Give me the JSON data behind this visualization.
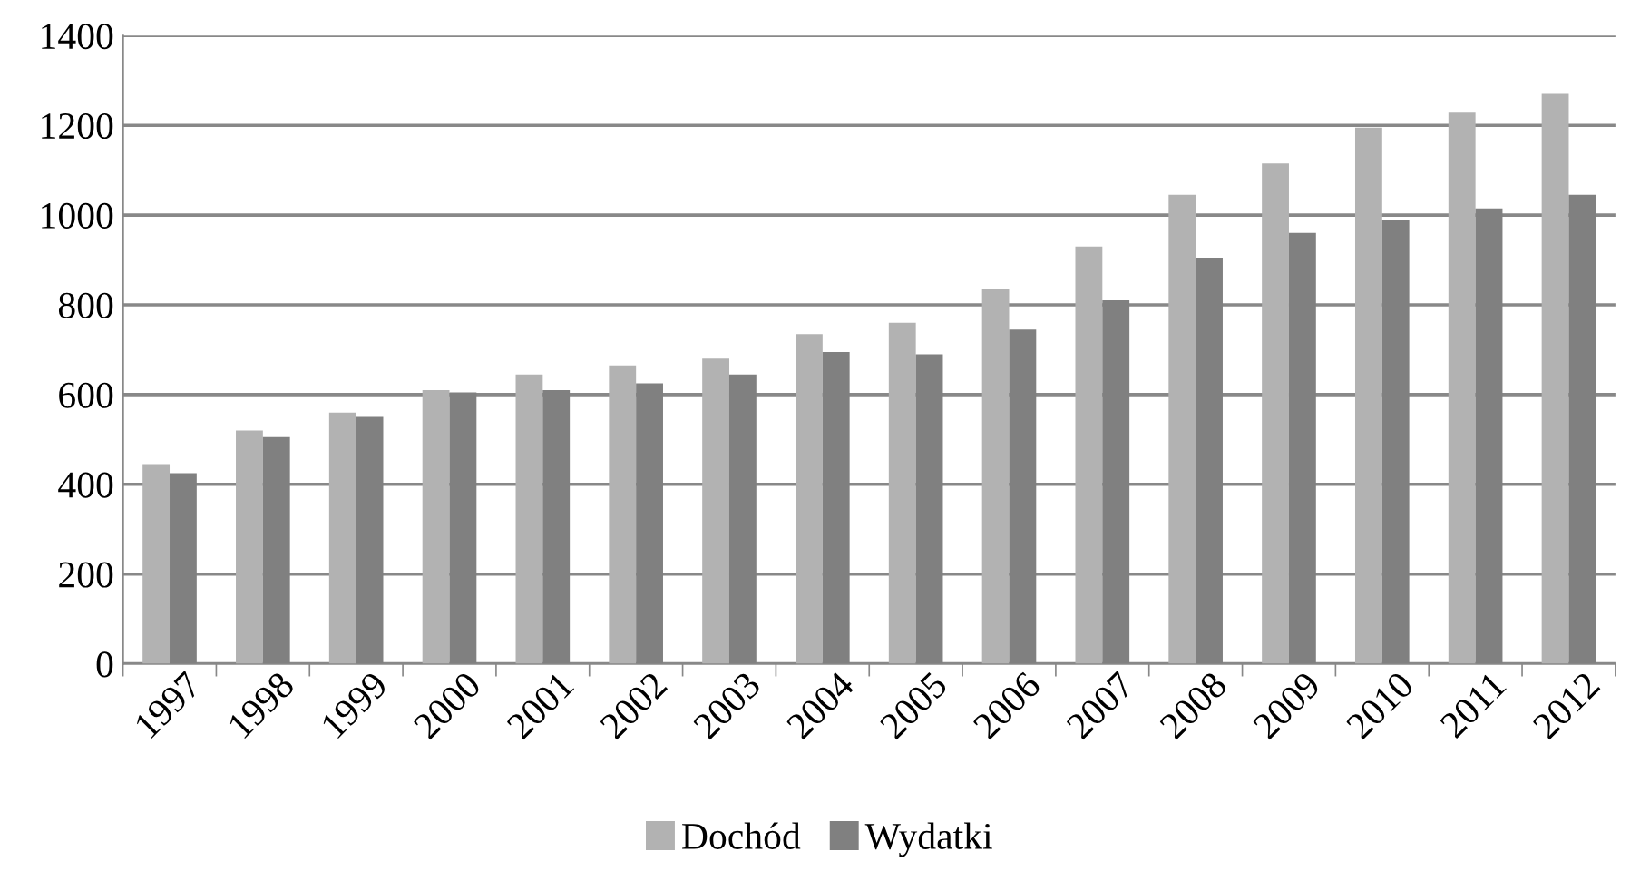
{
  "chart_data": {
    "type": "bar",
    "categories": [
      "1997",
      "1998",
      "1999",
      "2000",
      "2001",
      "2002",
      "2003",
      "2004",
      "2005",
      "2006",
      "2007",
      "2008",
      "2009",
      "2010",
      "2011",
      "2012"
    ],
    "series": [
      {
        "name": "Dochód",
        "color": "#b2b2b2",
        "values": [
          445,
          520,
          560,
          610,
          645,
          665,
          680,
          735,
          760,
          835,
          930,
          1045,
          1115,
          1195,
          1230,
          1270
        ]
      },
      {
        "name": "Wydatki",
        "color": "#808080",
        "values": [
          425,
          505,
          550,
          605,
          610,
          625,
          645,
          695,
          690,
          745,
          810,
          905,
          960,
          990,
          1015,
          1045
        ]
      }
    ],
    "ylim": [
      0,
      1400
    ],
    "yticks": [
      0,
      200,
      400,
      600,
      800,
      1000,
      1200,
      1400
    ],
    "grid": "y",
    "legend": "bottom"
  }
}
